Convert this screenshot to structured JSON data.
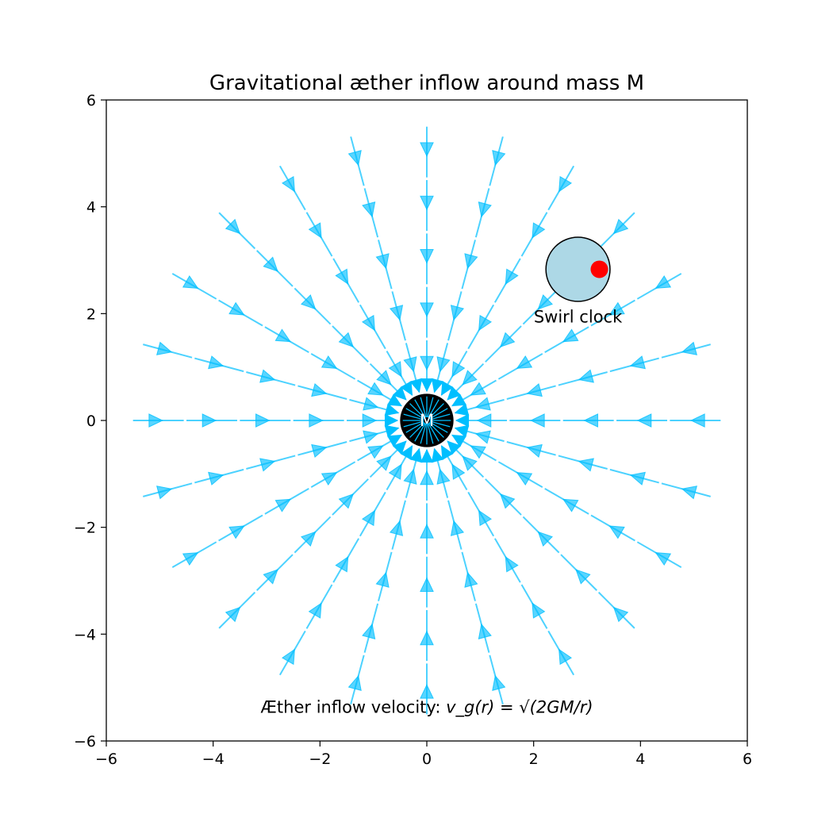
{
  "chart_data": {
    "type": "quiver",
    "title": "Gravitational æther inflow around mass M",
    "xlabel": "",
    "ylabel": "",
    "xlim": [
      -6,
      6
    ],
    "ylim": [
      -6,
      6
    ],
    "xticks": [
      "−6",
      "−4",
      "−2",
      "0",
      "2",
      "4",
      "6"
    ],
    "yticks": [
      "−6",
      "−4",
      "−2",
      "0",
      "2",
      "4",
      "6"
    ],
    "grid": false,
    "field": {
      "kind": "radial-inflow",
      "center": [
        0,
        0
      ],
      "directions": 24,
      "max_radius": 5.5,
      "arrow_color": "#00bfff"
    },
    "mass": {
      "label": "M",
      "center": [
        0,
        0
      ],
      "radius": 0.5,
      "color": "#000000"
    },
    "swirl_clock": {
      "label": "Swirl clock",
      "center": [
        2.83,
        2.83
      ],
      "radius": 0.6,
      "face_color": "#add8e6",
      "marker": [
        3.23,
        2.83
      ],
      "marker_color": "#ff0000"
    },
    "annotation": {
      "prefix": "Æther inflow velocity: ",
      "formula": "v_g(r) = √(2GM/r)",
      "position": [
        0,
        -5.5
      ]
    }
  }
}
